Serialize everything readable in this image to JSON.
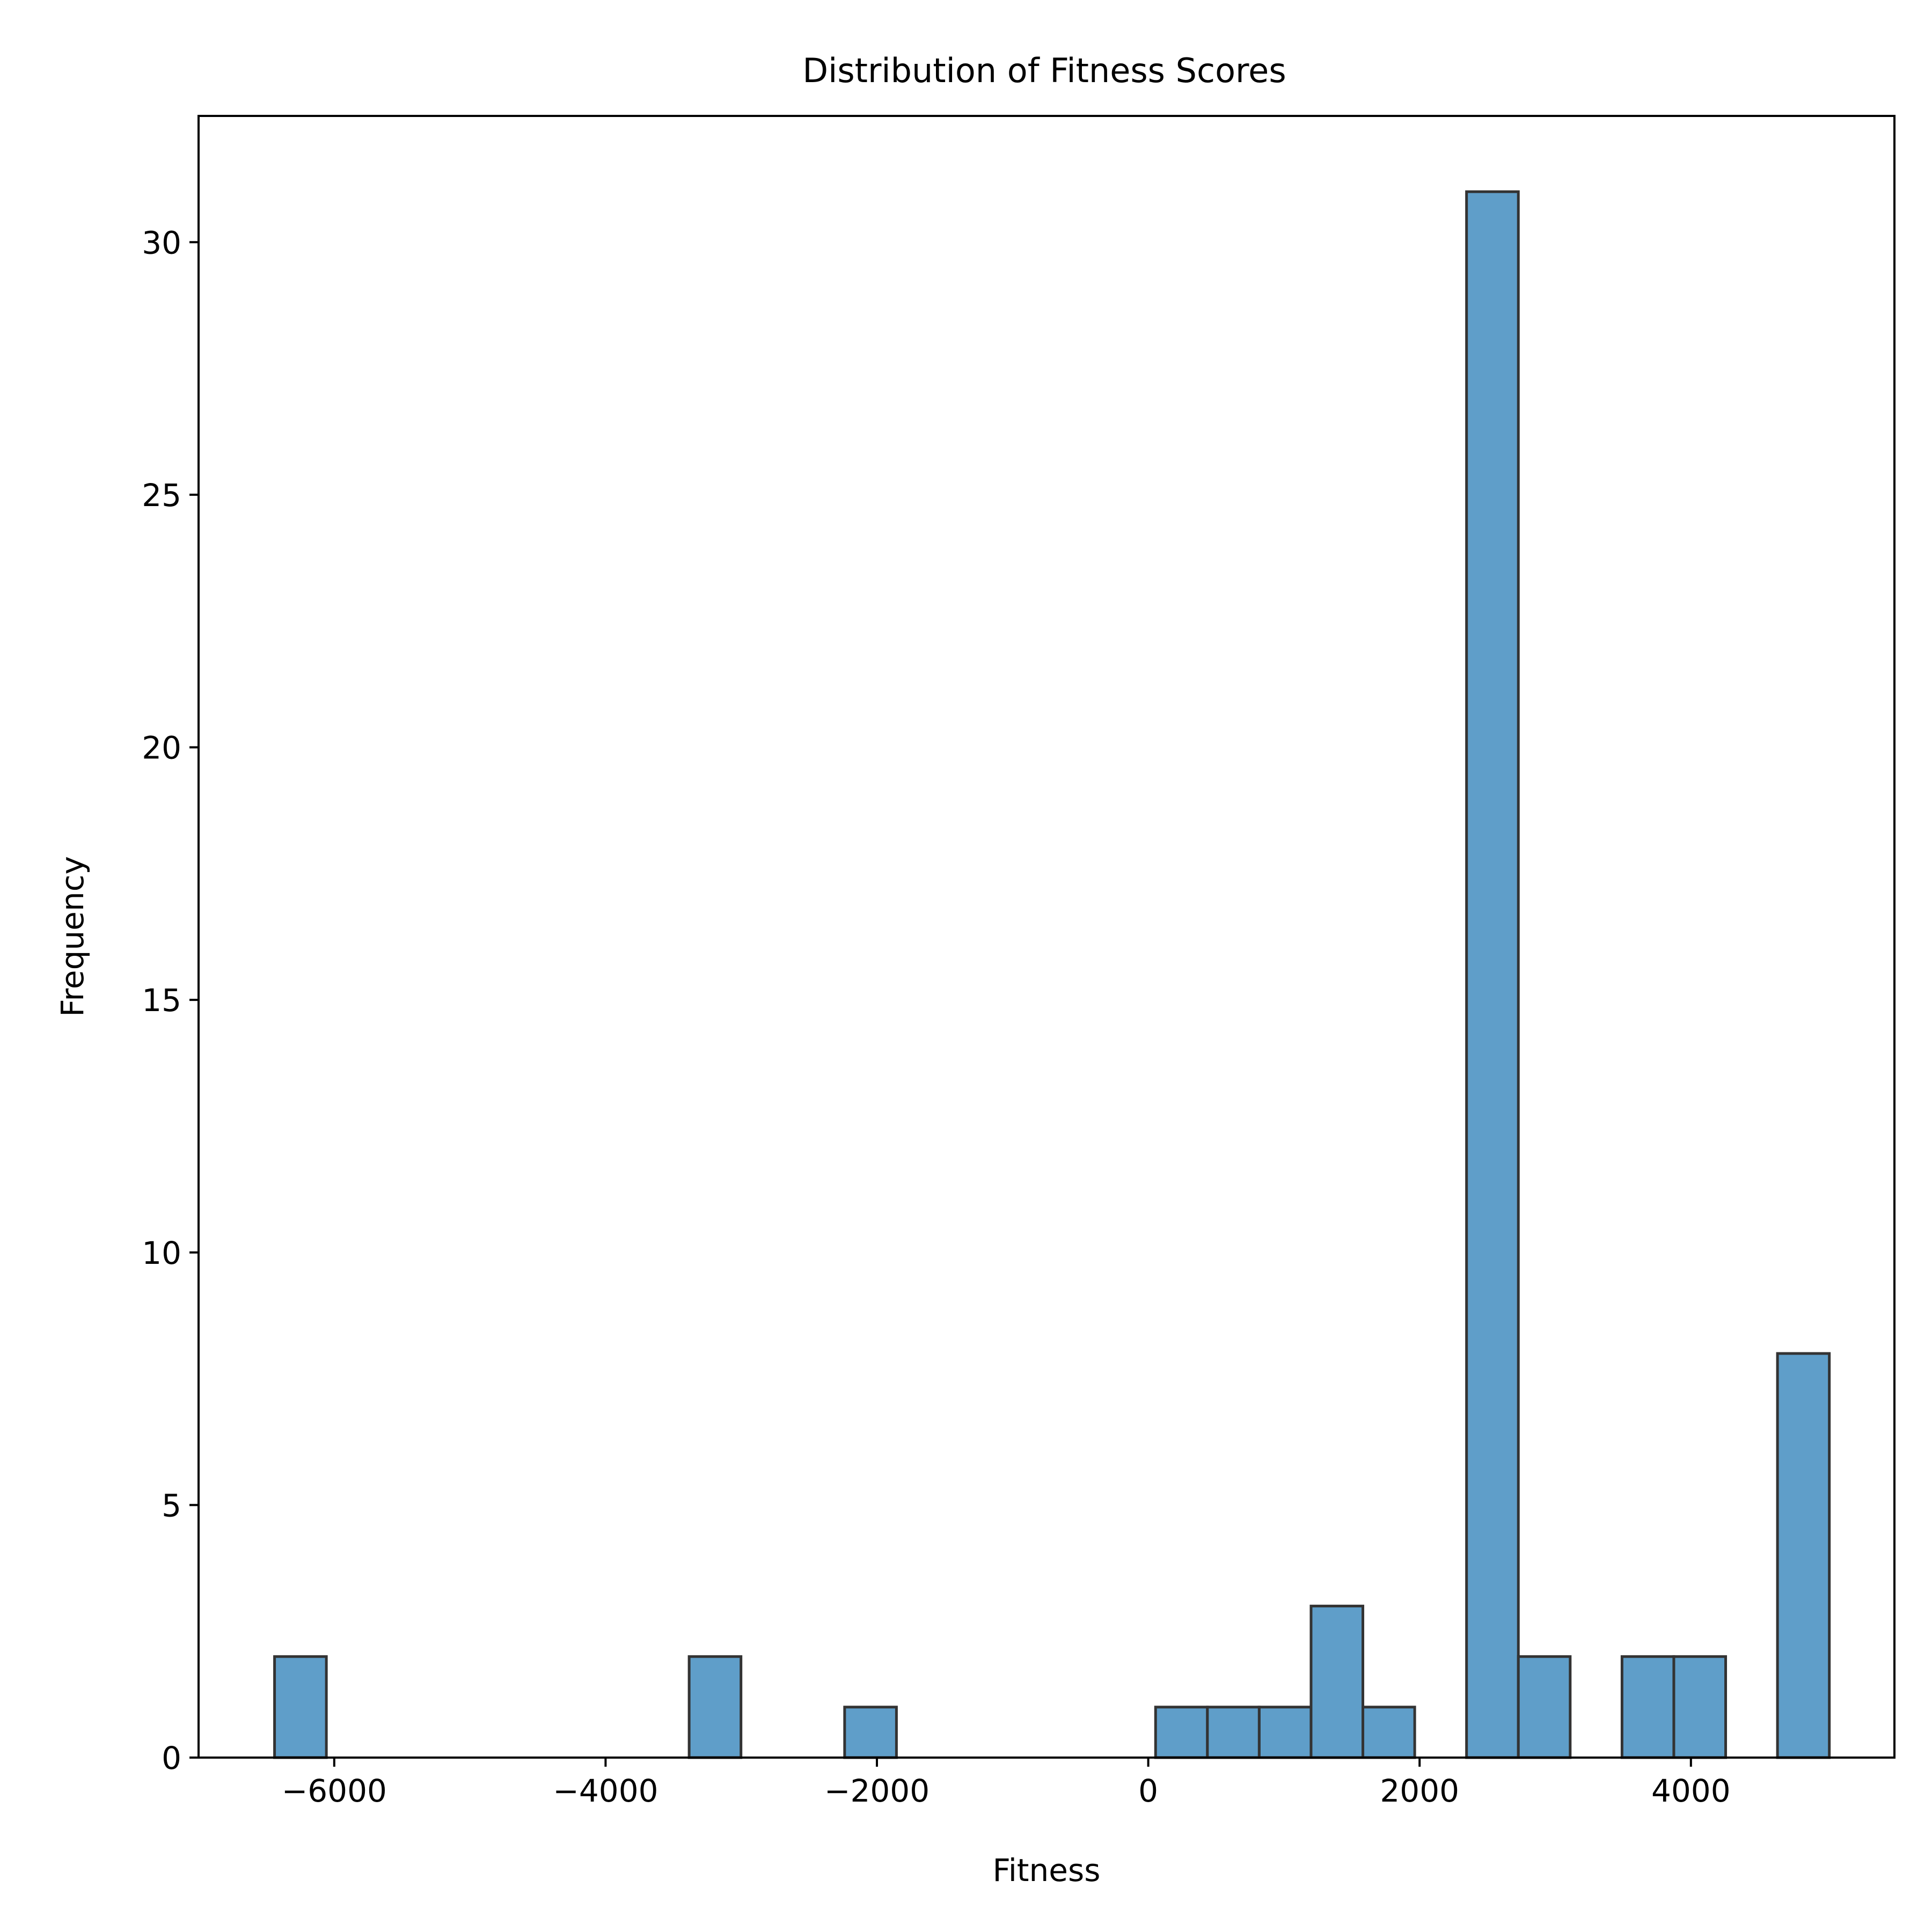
{
  "chart_data": {
    "type": "bar",
    "subtype": "histogram",
    "title": "Distribution of Fitness Scores",
    "xlabel": "Fitness",
    "ylabel": "Frequency",
    "xlim": [
      -7000,
      5500
    ],
    "ylim": [
      0,
      32.5
    ],
    "xticks": [
      -6000,
      -4000,
      -2000,
      0,
      2000,
      4000
    ],
    "xtick_labels": [
      "−6000",
      "−4000",
      "−2000",
      "0",
      "2000",
      "4000"
    ],
    "yticks": [
      0,
      5,
      10,
      15,
      20,
      25,
      30
    ],
    "ytick_labels": [
      "0",
      "5",
      "10",
      "15",
      "20",
      "25",
      "30"
    ],
    "grid": false,
    "bin_edges": [
      -6440,
      -6058,
      -5676,
      -5294,
      -4912,
      -4530,
      -4148,
      -3766,
      -3384,
      -3002,
      -2620,
      -2238,
      -1856,
      -1474,
      -1092,
      -710,
      -328,
      54,
      436,
      818,
      1200,
      1582,
      1964,
      2346,
      2728,
      3110,
      3492,
      3874,
      4256,
      4638,
      5020
    ],
    "counts": [
      2,
      0,
      0,
      0,
      0,
      0,
      0,
      0,
      2,
      0,
      0,
      1,
      0,
      0,
      0,
      0,
      0,
      1,
      1,
      1,
      3,
      1,
      0,
      31,
      2,
      0,
      2,
      2,
      0,
      8
    ],
    "bar_color": "#5f9ec9",
    "edge_color": "#333333"
  }
}
